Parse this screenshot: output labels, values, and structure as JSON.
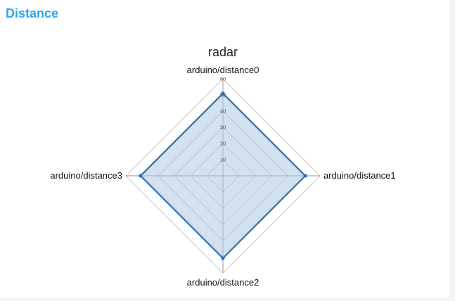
{
  "panel": {
    "title": "Distance"
  },
  "chart_data": {
    "type": "radar",
    "title": "radar",
    "axes": [
      "arduino/distance0",
      "arduino/distance1",
      "arduino/distance2",
      "arduino/distance3"
    ],
    "ticks": [
      "10",
      "20",
      "30",
      "40",
      "50",
      "60"
    ],
    "rmax": 60,
    "series": [
      {
        "values": [
          51,
          51,
          51,
          51
        ]
      }
    ],
    "grid": true,
    "colors": {
      "line": "#2a6fb0",
      "fill": "#aec7e3",
      "grid": "#c8c8c8",
      "spoke": "#9a9a9a"
    }
  }
}
